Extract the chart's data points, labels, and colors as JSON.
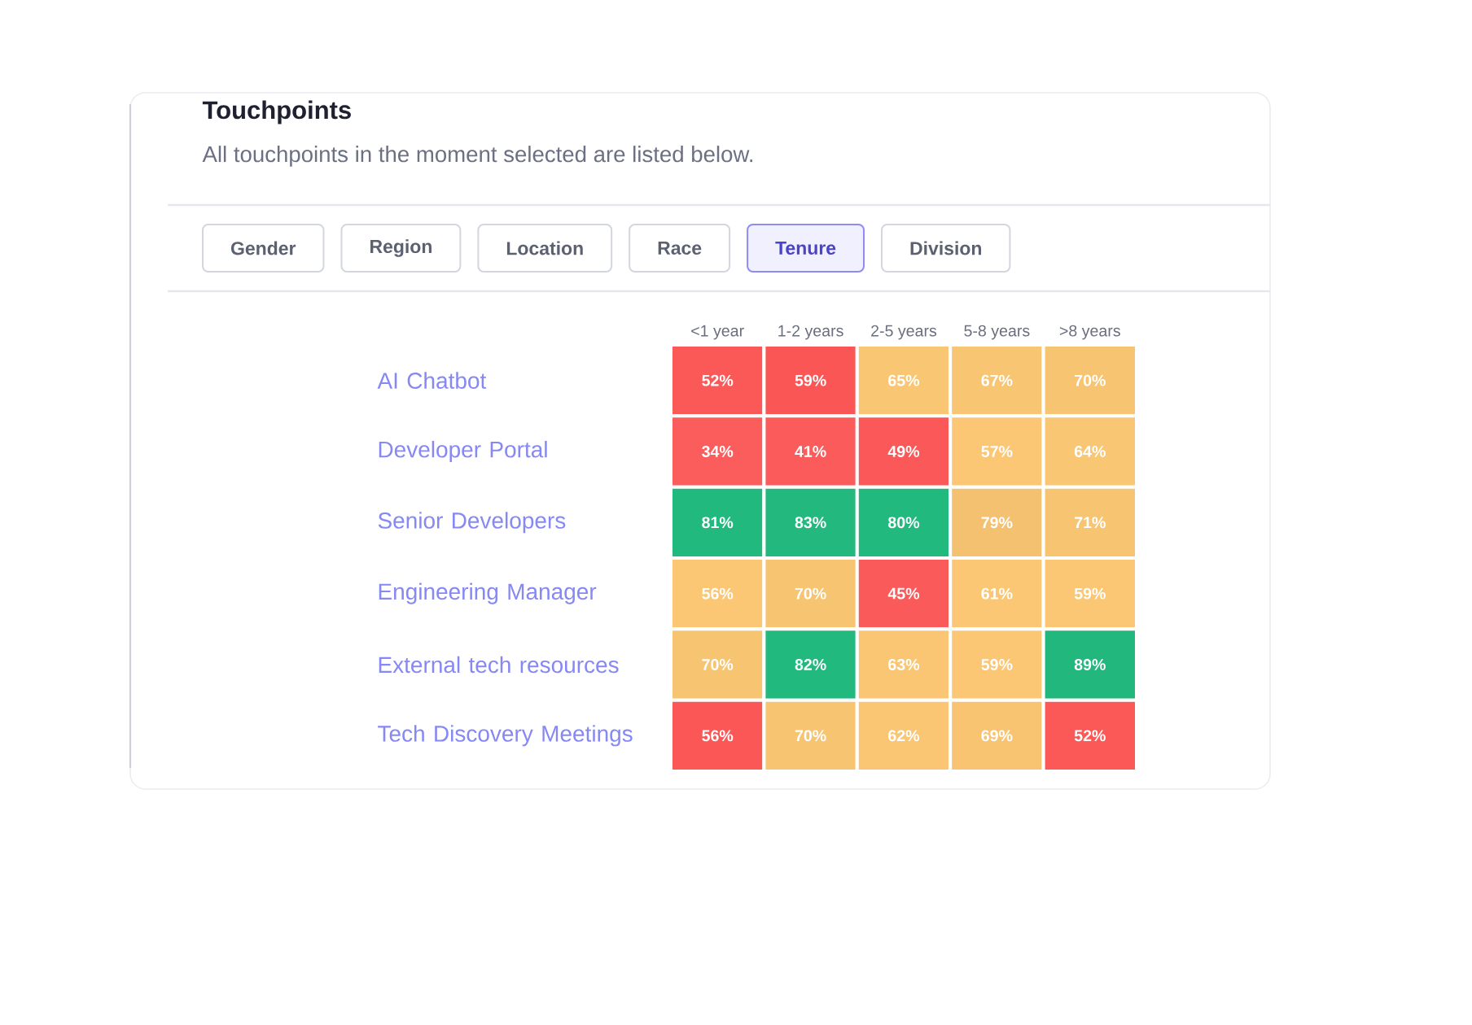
{
  "chart_data": {
    "type": "heatmap",
    "title": "Touchpoints",
    "subtitle": "All touchpoints in the moment selected are listed below.",
    "annotations": [
      "Gender",
      "Region",
      "Location",
      "Race",
      "Tenure",
      "Division"
    ],
    "categories": [
      "<1 year",
      "1-2 years",
      "2-5 years",
      "5-8 years",
      ">8 years"
    ],
    "y_categories": [
      "AI Chatbot",
      "Developer Portal",
      "Senior Developers",
      "Engineering Manager",
      "External tech resources",
      "Tech Discovery Meetings"
    ],
    "cells": [
      [
        52,
        59,
        65,
        67,
        70
      ],
      [
        34,
        41,
        49,
        57,
        64
      ],
      [
        81,
        83,
        80,
        79,
        71
      ],
      [
        56,
        70,
        45,
        61,
        59
      ],
      [
        70,
        82,
        63,
        59,
        89
      ],
      [
        56,
        70,
        62,
        69,
        52
      ]
    ],
    "cell_labels": [
      [
        "52%",
        "59%",
        "65%",
        "67%",
        "70%"
      ],
      [
        "34%",
        "41%",
        "49%",
        "57%",
        "64%"
      ],
      [
        "81%",
        "83%",
        "80%",
        "79%",
        "71%"
      ],
      [
        "56%",
        "70%",
        "45%",
        "61%",
        "59%"
      ],
      [
        "70%",
        "82%",
        "63%",
        "59%",
        "89%"
      ],
      [
        "56%",
        "70%",
        "62%",
        "69%",
        "52%"
      ]
    ],
    "colors": [
      [
        "#fb5656",
        "#fb5656",
        "#fbc774",
        "#fbc774",
        "#fbc774"
      ],
      [
        "#fb5656",
        "#fb5656",
        "#fb5656",
        "#fbc774",
        "#fbc774"
      ],
      [
        "#23bf83",
        "#23bf83",
        "#23bf83",
        "#fbc774",
        "#fbc774"
      ],
      [
        "#fbc774",
        "#fbc774",
        "#fb5656",
        "#fbc774",
        "#fbc774"
      ],
      [
        "#fbc774",
        "#23bf83",
        "#fbc774",
        "#fbc774",
        "#23bf83"
      ],
      [
        "#fb5656",
        "#fbc774",
        "#fbc774",
        "#fbc774",
        "#fb5656"
      ]
    ]
  }
}
